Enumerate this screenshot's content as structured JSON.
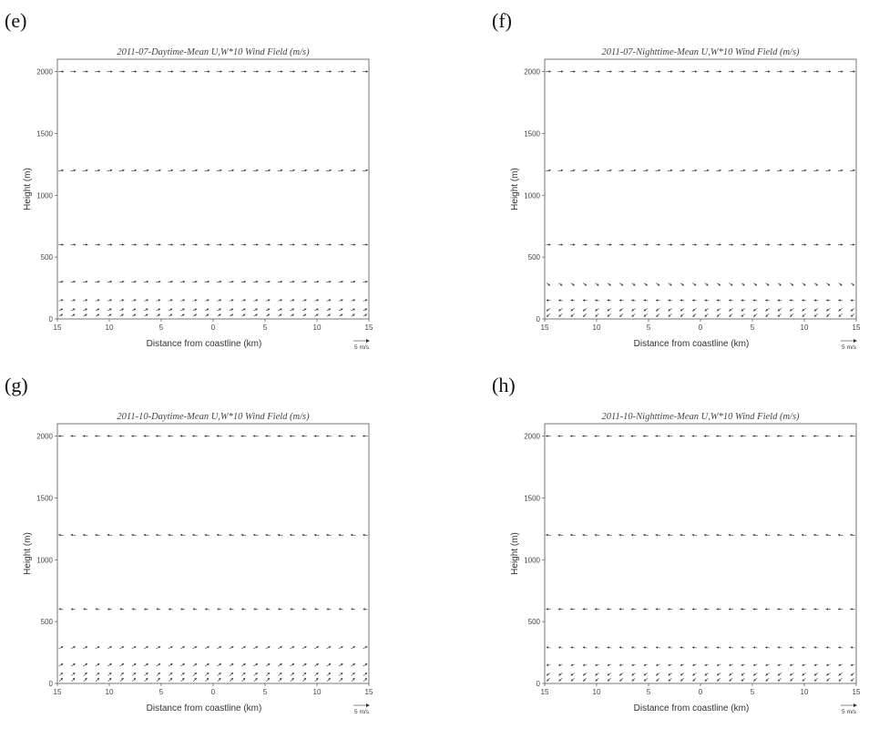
{
  "chart_data": [
    {
      "panel": "(e)",
      "type": "quiver",
      "title": "2011-07-Daytime-Mean U,W*10 Wind Field (m/s)",
      "xlabel": "Distance from coastline (km)",
      "ylabel": "Height (m)",
      "x_ticks": [
        "15",
        "10",
        "5",
        "0",
        "5",
        "10",
        "15"
      ],
      "y_ticks": [
        "0",
        "500",
        "1000",
        "1500",
        "2000"
      ],
      "xlim": [
        -15,
        15
      ],
      "ylim": [
        0,
        2100
      ],
      "scale_label": "5 m/s",
      "levels": [
        {
          "height": 2000,
          "u": 3.2,
          "w": 0.1
        },
        {
          "height": 1200,
          "u": 3.0,
          "w": 0.2
        },
        {
          "height": 600,
          "u": 2.8,
          "w": 0.1
        },
        {
          "height": 300,
          "u": 2.5,
          "w": 0.2
        },
        {
          "height": 150,
          "u": 2.2,
          "w": 0.3
        },
        {
          "height": 75,
          "u": 1.8,
          "w": 0.4
        },
        {
          "height": 30,
          "u": 1.5,
          "w": 0.5
        }
      ]
    },
    {
      "panel": "(f)",
      "type": "quiver",
      "title": "2011-07-Nighttime-Mean U,W*10 Wind Field (m/s)",
      "xlabel": "Distance from coastline (km)",
      "ylabel": "Height (m)",
      "x_ticks": [
        "15",
        "10",
        "5",
        "0",
        "5",
        "10",
        "15"
      ],
      "y_ticks": [
        "0",
        "500",
        "1000",
        "1500",
        "2000"
      ],
      "xlim": [
        -15,
        15
      ],
      "ylim": [
        0,
        2100
      ],
      "scale_label": "5 m/s",
      "levels": [
        {
          "height": 2000,
          "u": 3.0,
          "w": 0.1
        },
        {
          "height": 1200,
          "u": 2.8,
          "w": 0.2
        },
        {
          "height": 600,
          "u": 2.5,
          "w": 0.1
        },
        {
          "height": 280,
          "u": 1.5,
          "w": -0.6
        },
        {
          "height": 150,
          "u": -2.0,
          "w": 0.1
        },
        {
          "height": 75,
          "u": -1.8,
          "w": -0.6
        },
        {
          "height": 30,
          "u": -1.5,
          "w": -0.7
        }
      ]
    },
    {
      "panel": "(g)",
      "type": "quiver",
      "title": "2011-10-Daytime-Mean U,W*10 Wind Field (m/s)",
      "xlabel": "Distance from coastline (km)",
      "ylabel": "Height (m)",
      "x_ticks": [
        "15",
        "10",
        "5",
        "0",
        "5",
        "10",
        "15"
      ],
      "y_ticks": [
        "0",
        "500",
        "1000",
        "1500",
        "2000"
      ],
      "xlim": [
        -15,
        15
      ],
      "ylim": [
        0,
        2100
      ],
      "scale_label": "5 m/s",
      "levels": [
        {
          "height": 2000,
          "u": -3.0,
          "w": 0.1
        },
        {
          "height": 1200,
          "u": -2.8,
          "w": 0.1
        },
        {
          "height": 600,
          "u": -2.2,
          "w": 0.2
        },
        {
          "height": 290,
          "u": 2.2,
          "w": 0.5
        },
        {
          "height": 150,
          "u": 2.0,
          "w": 0.6
        },
        {
          "height": 75,
          "u": 1.6,
          "w": 0.7
        },
        {
          "height": 30,
          "u": 1.3,
          "w": 0.8
        }
      ]
    },
    {
      "panel": "(h)",
      "type": "quiver",
      "title": "2011-10-Nighttime-Mean U,W*10 Wind Field (m/s)",
      "xlabel": "Distance from coastline (km)",
      "ylabel": "Height (m)",
      "x_ticks": [
        "15",
        "10",
        "5",
        "0",
        "5",
        "10",
        "15"
      ],
      "y_ticks": [
        "0",
        "500",
        "1000",
        "1500",
        "2000"
      ],
      "xlim": [
        -15,
        15
      ],
      "ylim": [
        0,
        2100
      ],
      "scale_label": "5 m/s",
      "levels": [
        {
          "height": 2000,
          "u": -3.0,
          "w": 0.1
        },
        {
          "height": 1200,
          "u": -2.8,
          "w": 0.1
        },
        {
          "height": 600,
          "u": -2.5,
          "w": 0.1
        },
        {
          "height": 290,
          "u": -2.2,
          "w": 0.2
        },
        {
          "height": 150,
          "u": -2.0,
          "w": -0.3
        },
        {
          "height": 75,
          "u": -1.7,
          "w": -0.6
        },
        {
          "height": 30,
          "u": -1.4,
          "w": -0.7
        }
      ]
    }
  ]
}
